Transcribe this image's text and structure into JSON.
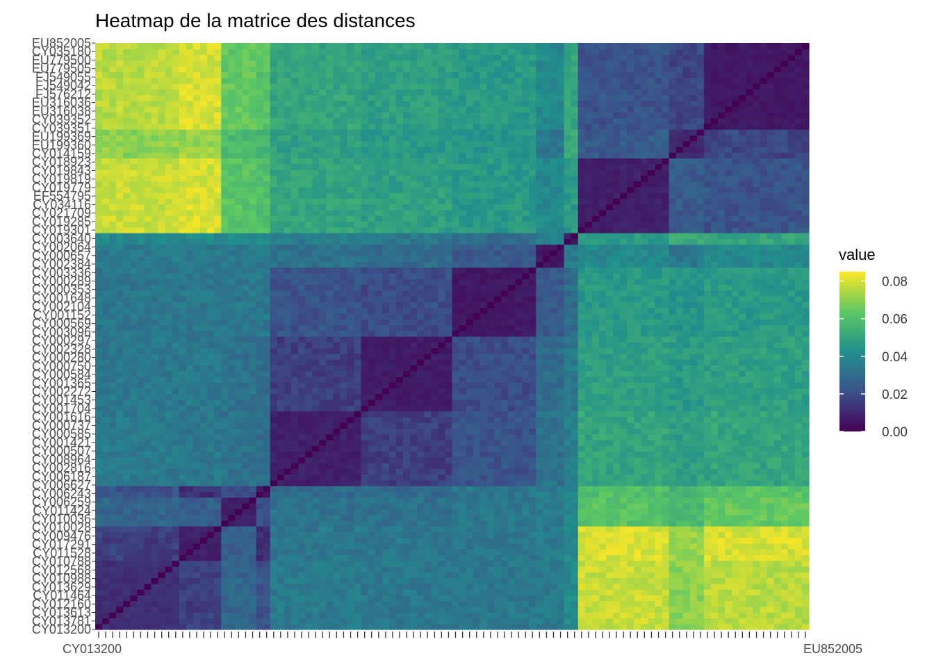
{
  "chart_data": {
    "type": "heatmap",
    "title": "Heatmap de la matrice des distances",
    "xlabel": "",
    "ylabel": "",
    "colorscale": "viridis",
    "colors": [
      "#440154",
      "#3b528b",
      "#21908c",
      "#5dc863",
      "#fde725"
    ],
    "value_range": [
      0,
      0.085
    ],
    "grid": false,
    "legend": {
      "title": "value",
      "placement": "right",
      "ticks": [
        0.0,
        0.02,
        0.04,
        0.06,
        0.08
      ],
      "tick_labels": [
        "0.00",
        "0.02",
        "0.04",
        "0.06",
        "0.08"
      ]
    },
    "y_tick_labels_top_to_bottom": [
      "EU852005",
      "CY035180",
      "EU779500",
      "EU779505",
      "FJ549055",
      "FJ549042",
      "FJ576212",
      "EU316036",
      "EU316038",
      "CY039352",
      "CY039351",
      "EU199369",
      "EU199360",
      "CY014159",
      "CY018923",
      "CY019843",
      "CY019819",
      "CY019779",
      "EF554795",
      "CY034116",
      "CY021709",
      "CY019285",
      "CY019301",
      "CY003640",
      "CY002064",
      "CY000657",
      "CY002384",
      "CY003336",
      "CY000289",
      "CY000353",
      "CY001648",
      "CY002104",
      "CY001152",
      "CY000569",
      "CY003096",
      "CY000297",
      "CY002328",
      "CY000280",
      "CY000750",
      "CY000584",
      "CY001365",
      "CY002272",
      "CY001453",
      "CY001704",
      "CY001616",
      "CY000737",
      "CY000585",
      "CY001421",
      "CY000507",
      "CY008964",
      "CY002816",
      "CY006187",
      "CY006627",
      "CY006243",
      "CY006259",
      "CY011424",
      "CY010036",
      "CY010028",
      "CY009476",
      "CY017291",
      "CY011528",
      "CY010788",
      "CY012568",
      "CY010988",
      "CY013629",
      "CY011464",
      "CY012160",
      "CY013613",
      "CY013781",
      "CY013200"
    ],
    "x_tick_labels_visible": [
      "CY013200",
      "EU852005"
    ],
    "blocks": [
      {
        "rows": "EU852005 – EU199360",
        "cols": "CY013200 – CY017291",
        "value_approx": 0.075
      },
      {
        "rows": "CY013200 – CY012568",
        "cols": "EU852005 – EU199360",
        "value_approx": 0.08
      },
      {
        "rows": "CY013200 – CY012568",
        "cols": "CY013200 – CY012568",
        "value_approx": 0.01
      },
      {
        "rows": "EU852005 – EU199360",
        "cols": "EU852005 – EU199360",
        "value_approx": 0.008
      },
      {
        "rows": "CY000569 – CY001152",
        "cols": "CY000569 – CY001152",
        "value_approx": 0.005
      },
      {
        "rows": "CY006259 – CY008964",
        "cols": "CY006259 – CY008964",
        "value_approx": 0.006
      },
      {
        "rows": "CY002104 – CY000289",
        "cols": "CY000289 – CY002104",
        "value_approx": 0.005
      },
      {
        "rows": "CY003336 – CY019285",
        "cols": "CY019285 – CY003336",
        "value_approx": 0.007
      }
    ]
  }
}
